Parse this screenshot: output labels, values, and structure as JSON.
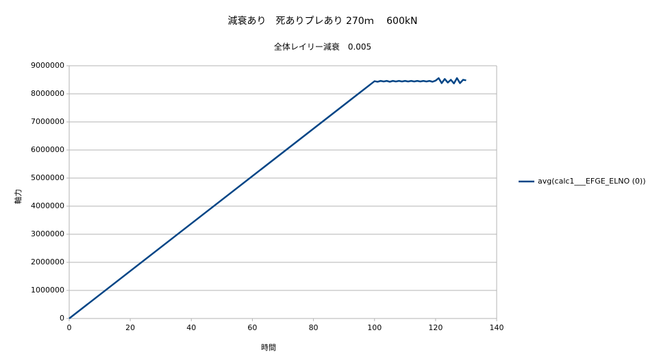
{
  "chart_data": {
    "type": "line",
    "title": "減衰あり　死ありプレあり 270ｍ　 600kN",
    "subtitle": "全体レイリー減衰　0.005",
    "x_label": "時間",
    "y_label": "軸力",
    "x": [
      0,
      100,
      101,
      102,
      103,
      104,
      105,
      106,
      107,
      108,
      109,
      110,
      111,
      112,
      113,
      114,
      115,
      116,
      117,
      118,
      119,
      120,
      121,
      122,
      123,
      124,
      125,
      126,
      127,
      128,
      129,
      130
    ],
    "series": [
      {
        "name": "avg(calc1___EFGE_ELNO (0))",
        "color": "#004586",
        "values": [
          0,
          8450000,
          8430000,
          8460000,
          8440000,
          8460000,
          8430000,
          8460000,
          8440000,
          8460000,
          8440000,
          8460000,
          8440000,
          8460000,
          8440000,
          8460000,
          8440000,
          8460000,
          8440000,
          8460000,
          8430000,
          8470000,
          8560000,
          8380000,
          8530000,
          8400000,
          8500000,
          8370000,
          8560000,
          8380000,
          8500000,
          8480000
        ]
      }
    ],
    "xlim": [
      0,
      140
    ],
    "xticks": [
      0,
      20,
      40,
      60,
      80,
      100,
      120,
      140
    ],
    "ylim": [
      0,
      9000000
    ],
    "yticks": [
      0,
      1000000,
      2000000,
      3000000,
      4000000,
      5000000,
      6000000,
      7000000,
      8000000,
      9000000
    ],
    "grid": true,
    "legend": "right"
  }
}
